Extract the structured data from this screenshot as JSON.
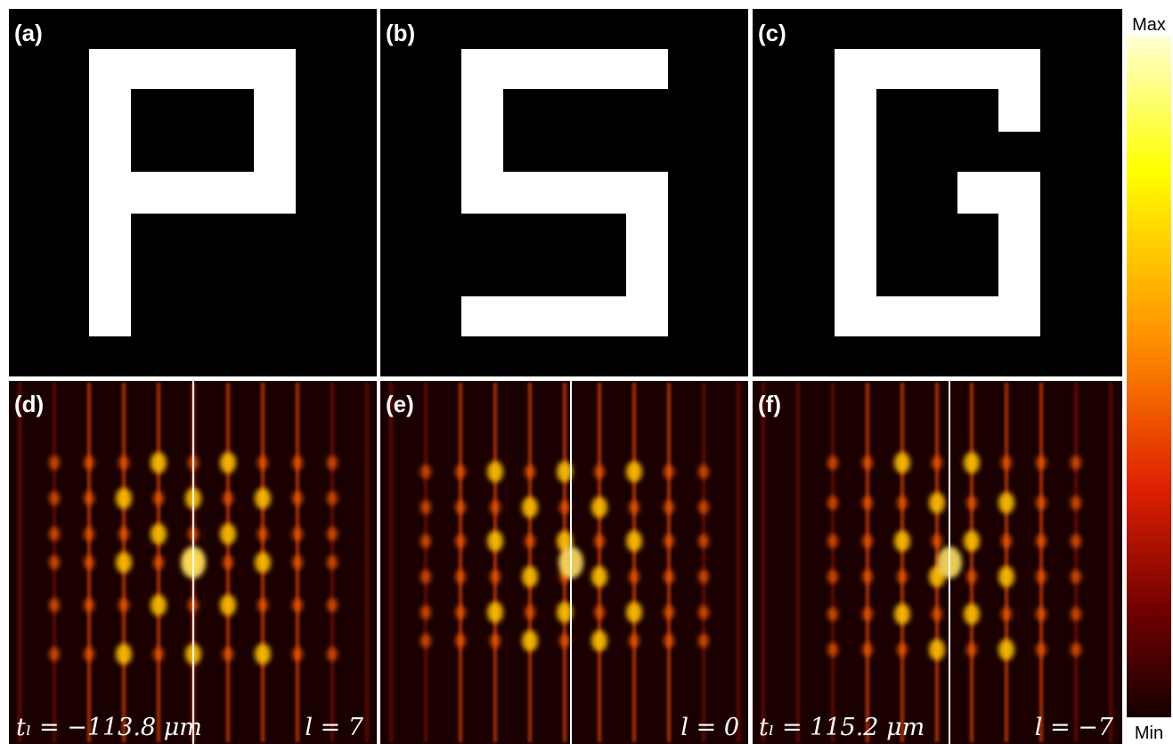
{
  "panels": [
    {
      "label": "(a)"
    },
    {
      "label": "(b)"
    },
    {
      "label": "(c)"
    },
    {
      "label": "(d)",
      "left_note": "tₗ = −113.8 μm",
      "right_note": "l = 7"
    },
    {
      "label": "(e)",
      "right_note": "l = 0"
    },
    {
      "label": "(f)",
      "left_note": "tₗ = 115.2 μm",
      "right_note": "l = −7"
    }
  ],
  "colorbar": {
    "max_label": "Max",
    "min_label": "Min"
  }
}
